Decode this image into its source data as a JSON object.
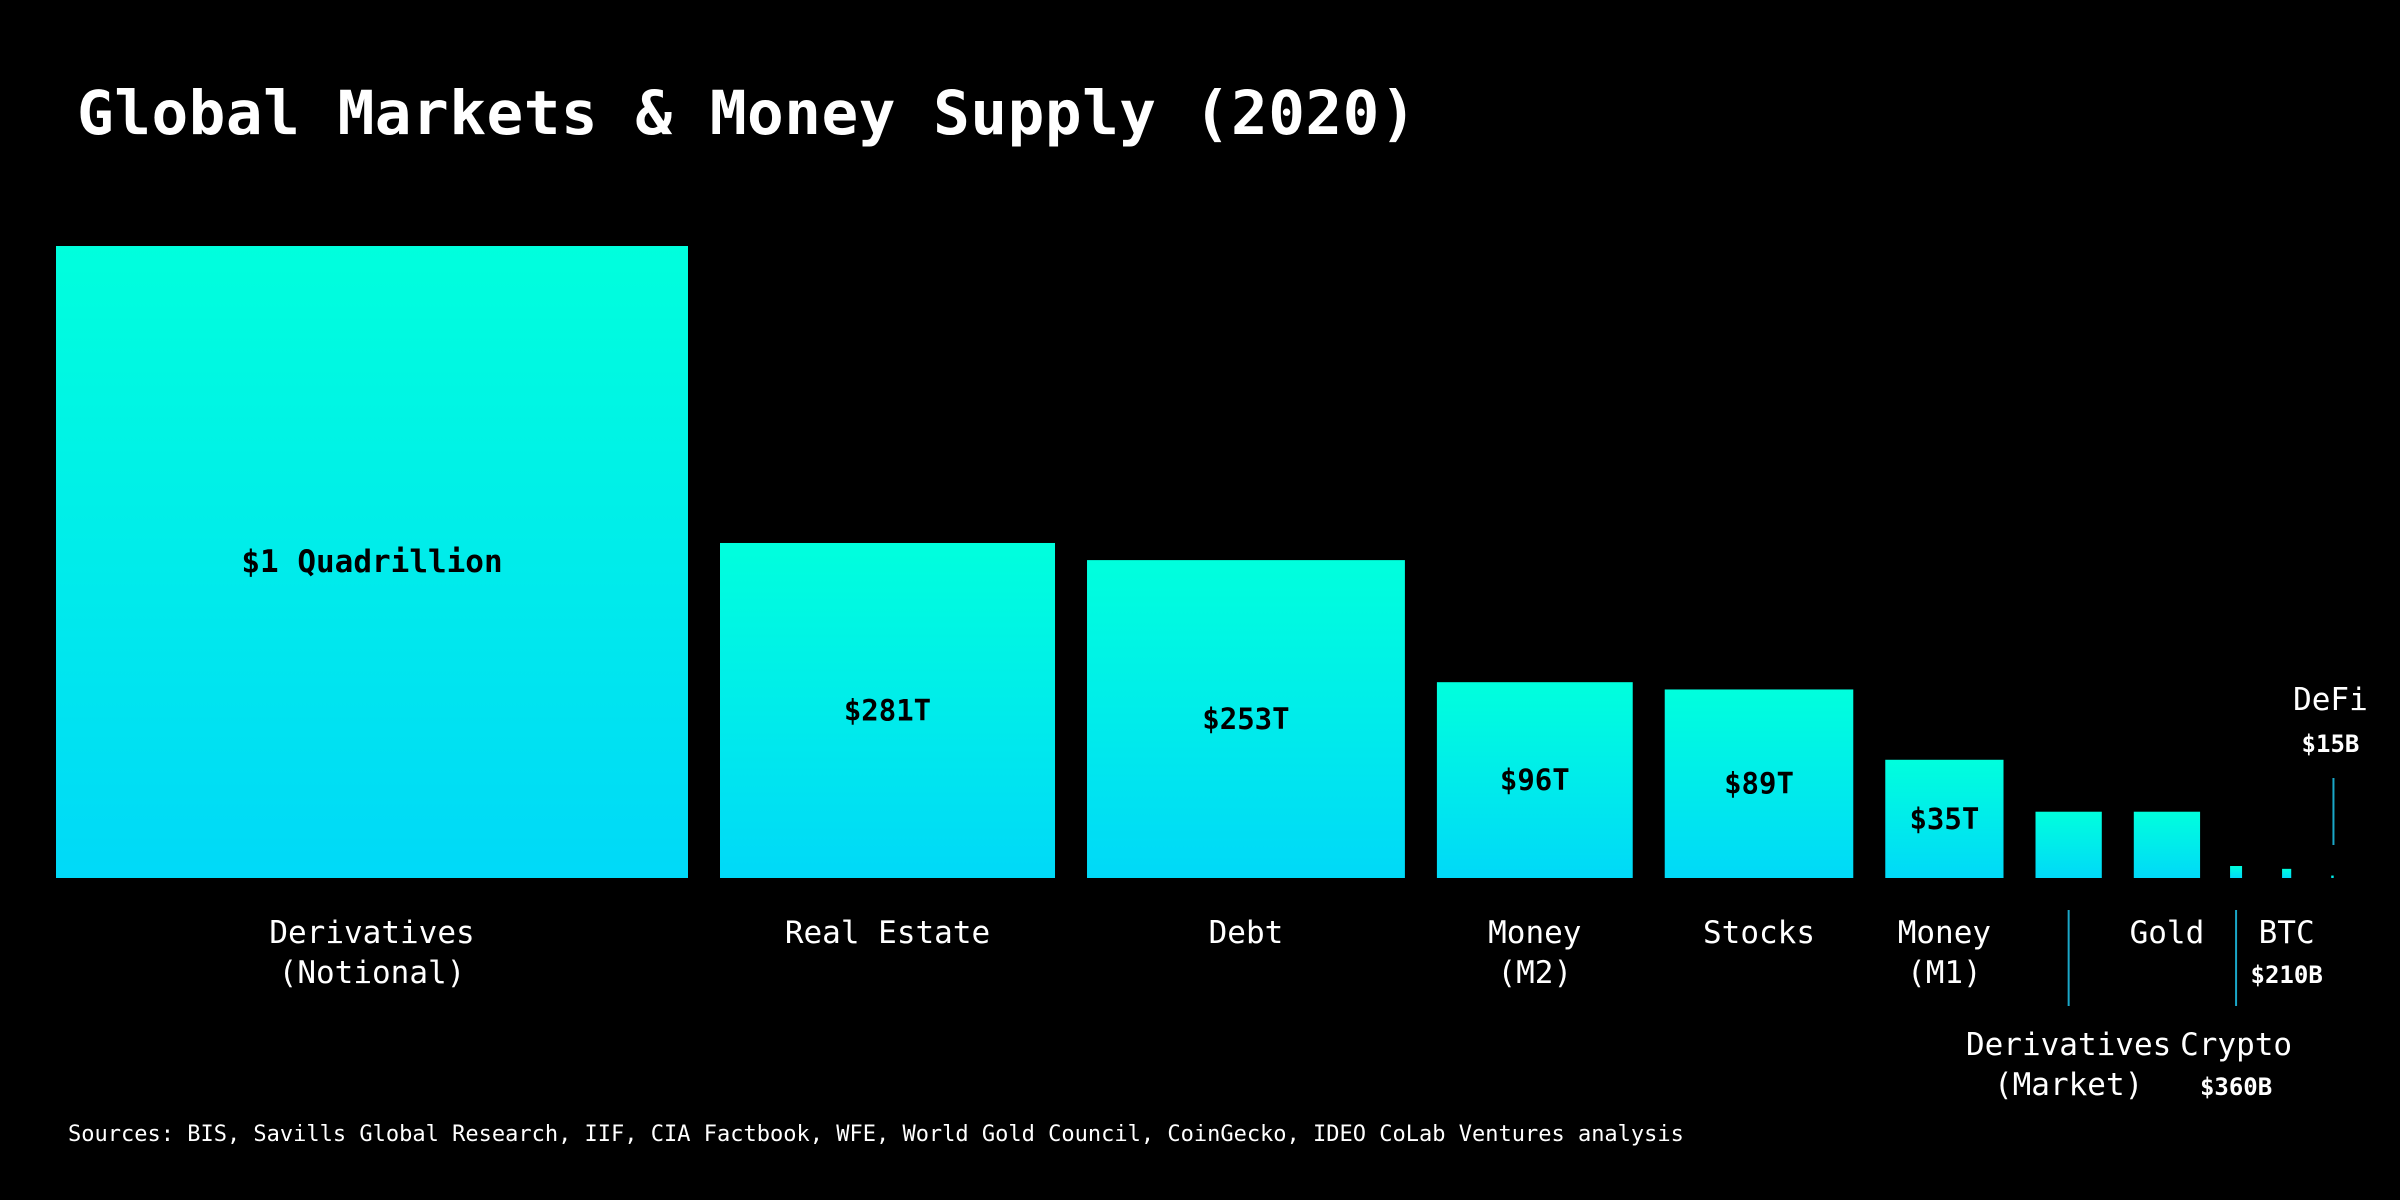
{
  "title": "Global Markets & Money Supply (2020)",
  "sources": "Sources: BIS, Savills Global Research, IIF, CIA Factbook, WFE, World Gold Council, CoinGecko, IDEO CoLab Ventures analysis",
  "colors": {
    "background": "#000000",
    "bar_top": "#00FFDD",
    "bar_bottom": "#00D9F8",
    "leader": "#1AA7C8",
    "text": "#FFFFFF",
    "bar_label": "#000000"
  },
  "chart_data": {
    "type": "bar",
    "title": "Global Markets & Money Supply (2020)",
    "xlabel": "",
    "ylabel": "",
    "unit": "USD",
    "grid": false,
    "categories": [
      {
        "id": "derivatives-notional",
        "label": [
          "Derivatives",
          "(Notional)"
        ],
        "value": 1000,
        "value_label": "$1 Quadrillion",
        "value_inside": true,
        "label_slot": "below"
      },
      {
        "id": "real-estate",
        "label": [
          "Real Estate"
        ],
        "value": 281,
        "value_label": "$281T",
        "value_inside": true,
        "label_slot": "below"
      },
      {
        "id": "debt",
        "label": [
          "Debt"
        ],
        "value": 253,
        "value_label": "$253T",
        "value_inside": true,
        "label_slot": "below"
      },
      {
        "id": "money-m2",
        "label": [
          "Money",
          "(M2)"
        ],
        "value": 96,
        "value_label": "$96T",
        "value_inside": true,
        "label_slot": "below"
      },
      {
        "id": "stocks",
        "label": [
          "Stocks"
        ],
        "value": 89,
        "value_label": "$89T",
        "value_inside": true,
        "label_slot": "below"
      },
      {
        "id": "money-m1",
        "label": [
          "Money",
          "(M1)"
        ],
        "value": 35,
        "value_label": "$35T",
        "value_inside": true,
        "label_slot": "below"
      },
      {
        "id": "derivatives-market",
        "label": [
          "Derivatives",
          "(Market)"
        ],
        "value": 11,
        "value_label": "",
        "value_inside": false,
        "label_slot": "low"
      },
      {
        "id": "gold",
        "label": [
          "Gold"
        ],
        "value": 11,
        "value_label": "",
        "value_inside": false,
        "label_slot": "below"
      },
      {
        "id": "crypto",
        "label": [
          "Crypto"
        ],
        "value": 0.36,
        "value_label": "$360B",
        "value_inside": false,
        "label_slot": "low"
      },
      {
        "id": "btc",
        "label": [
          "BTC"
        ],
        "value": 0.21,
        "value_label": "$210B",
        "value_inside": false,
        "label_slot": "below"
      },
      {
        "id": "defi",
        "label": [
          "DeFi"
        ],
        "value": 0.015,
        "value_label": "$15B",
        "value_inside": false,
        "label_slot": "above"
      }
    ]
  }
}
